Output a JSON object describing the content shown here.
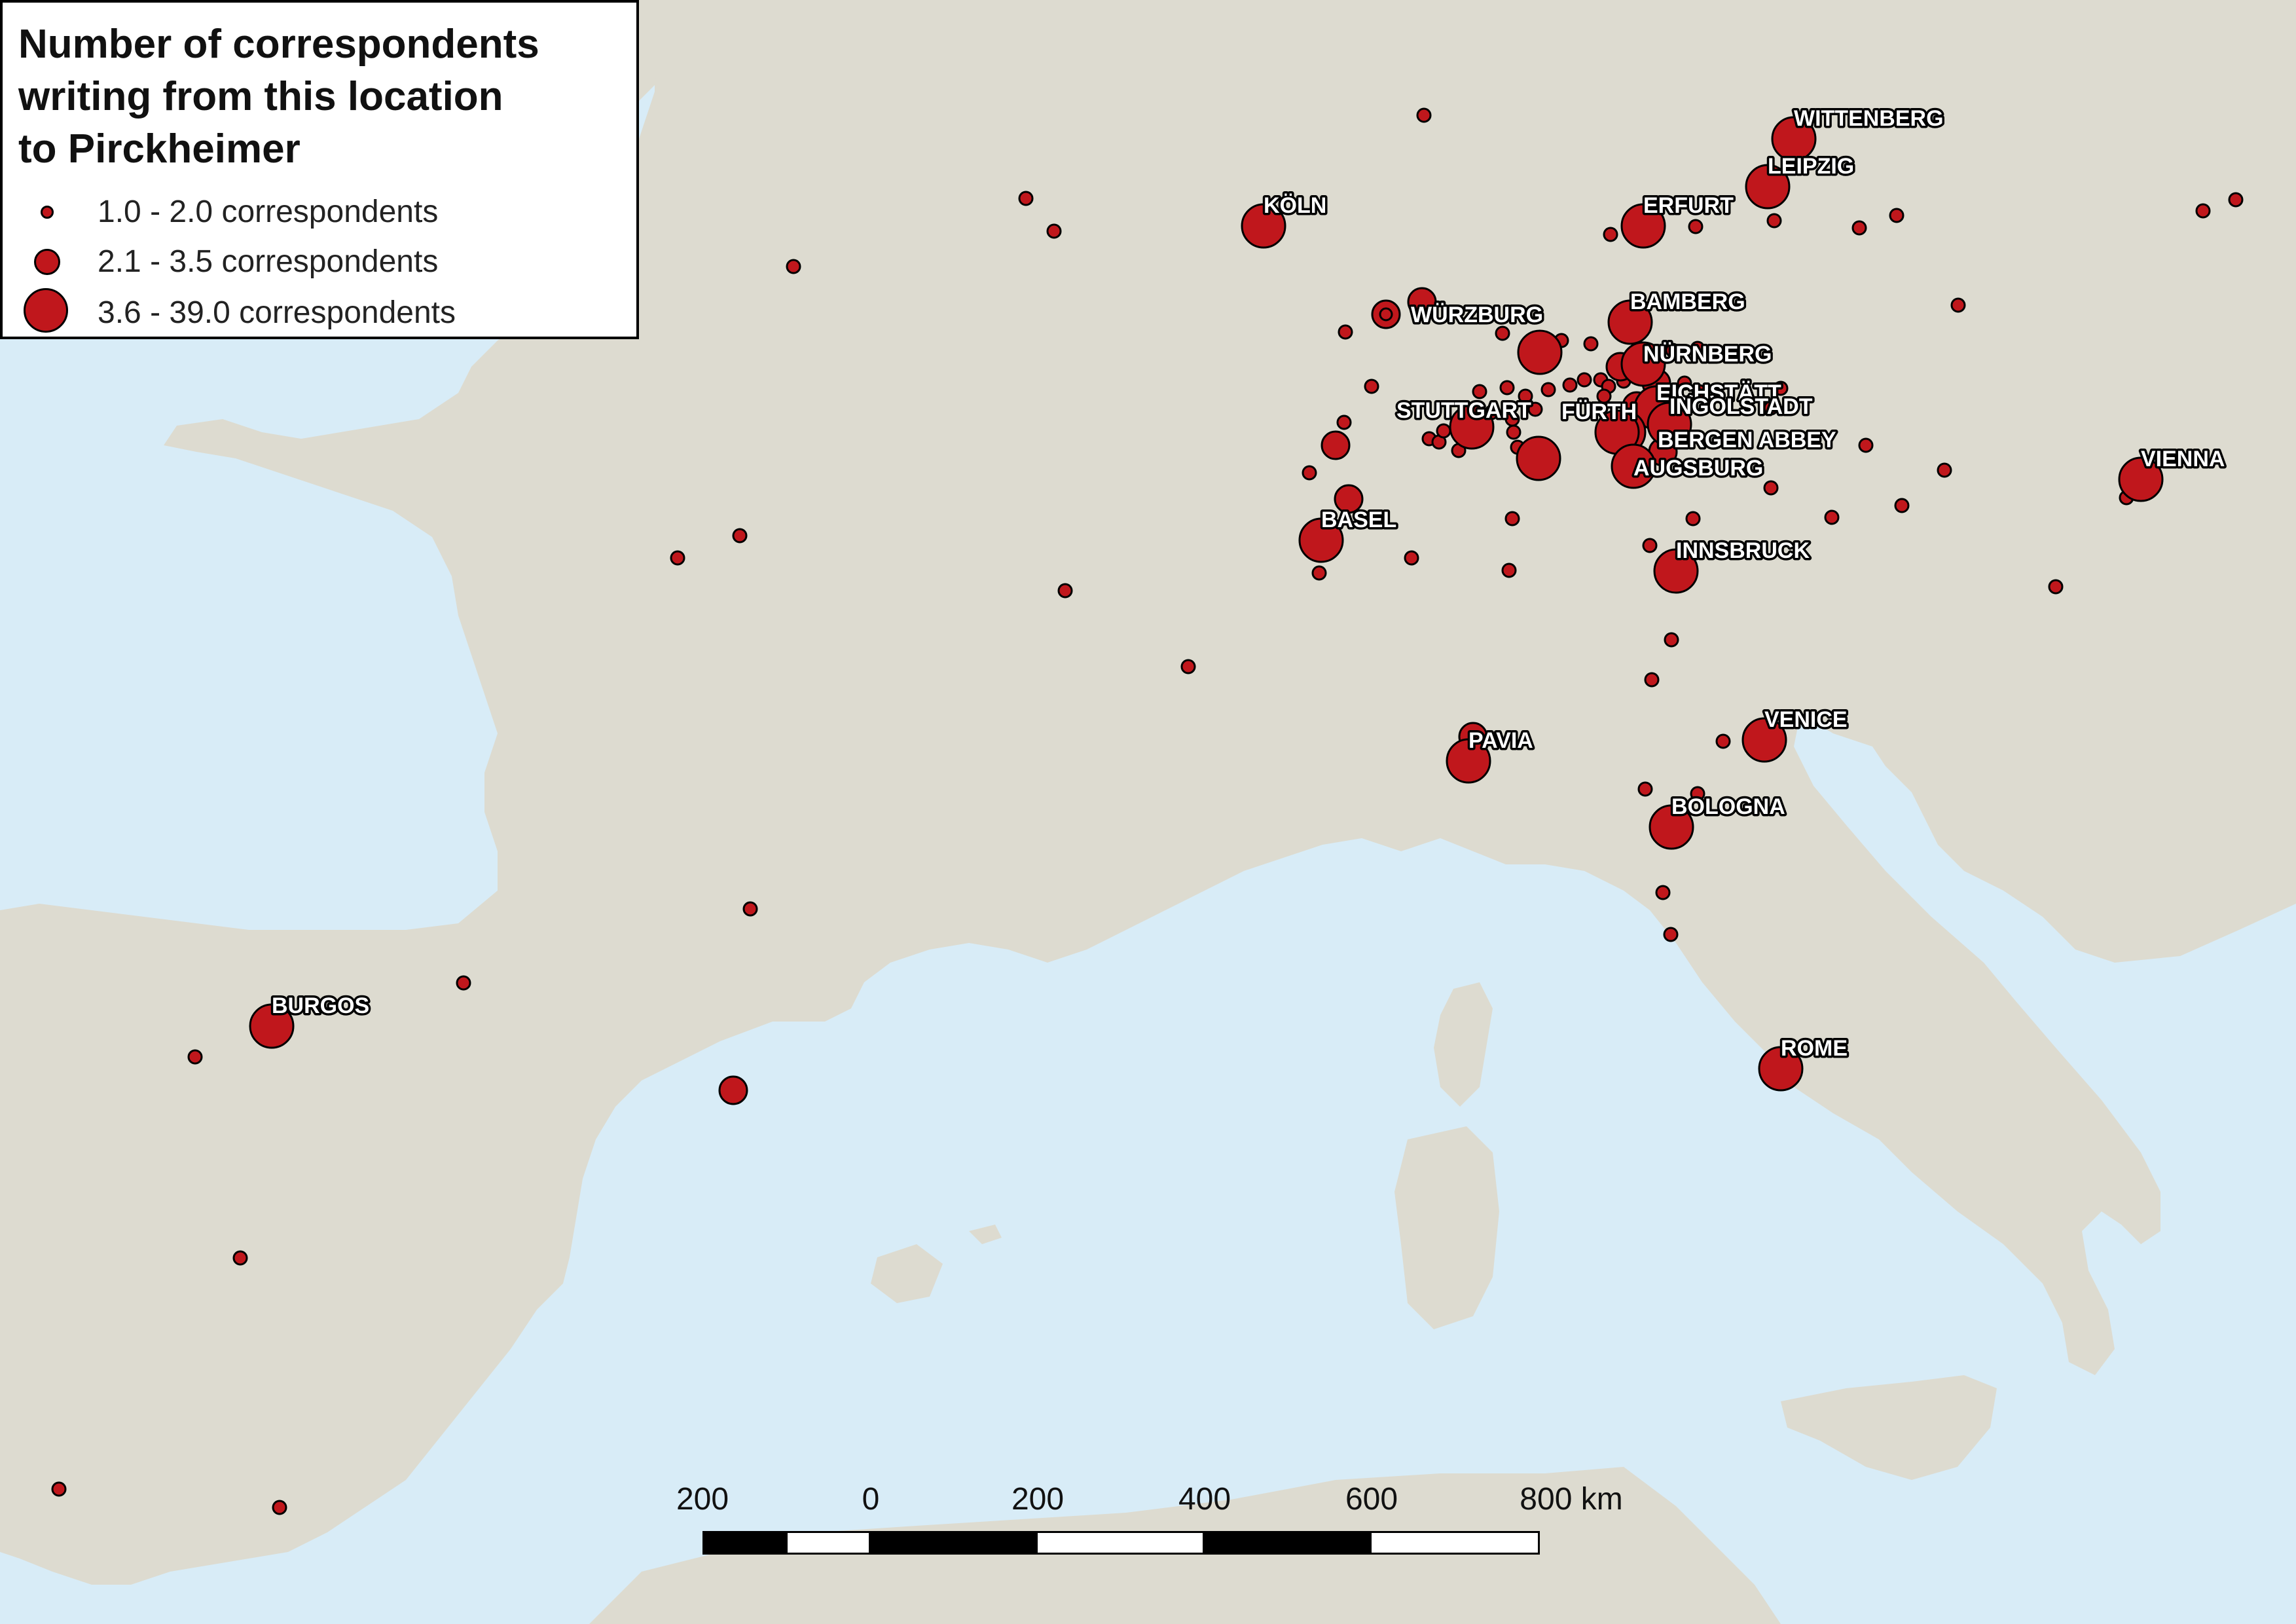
{
  "legend": {
    "title_lines": [
      "Number of correspondents",
      "writing from this location",
      "to Pirckheimer"
    ],
    "classes": [
      {
        "label": "1.0 - 2.0 correspondents",
        "size": "small"
      },
      {
        "label": "2.1 - 3.5 correspondents",
        "size": "medium"
      },
      {
        "label": "3.6 - 39.0 correspondents",
        "size": "large"
      }
    ]
  },
  "scale_bar": {
    "labels": [
      "200",
      "0",
      "200",
      "400",
      "600",
      "800 km"
    ]
  },
  "colors": {
    "sea": "#d8ecf7",
    "land": "#dddbd0",
    "marker": "#c0171c",
    "marker_outline": "#000000"
  },
  "cities": [
    {
      "name": "WITTENBERG",
      "size": "large"
    },
    {
      "name": "LEIPZIG",
      "size": "large"
    },
    {
      "name": "ERFURT",
      "size": "large"
    },
    {
      "name": "KÖLN",
      "size": "large"
    },
    {
      "name": "BAMBERG",
      "size": "large"
    },
    {
      "name": "WÜRZBURG",
      "size": "medium"
    },
    {
      "name": "NÜRNBERG",
      "size": "large"
    },
    {
      "name": "EICHSTÄTT",
      "size": "large"
    },
    {
      "name": "INGOLSTADT",
      "size": "large"
    },
    {
      "name": "STUTTGART",
      "size": "large"
    },
    {
      "name": "FÜRTH",
      "size": "large"
    },
    {
      "name": "BERGEN ABBEY",
      "size": "large"
    },
    {
      "name": "AUGSBURG",
      "size": "large"
    },
    {
      "name": "VIENNA",
      "size": "large"
    },
    {
      "name": "BASEL",
      "size": "large"
    },
    {
      "name": "INNSBRUCK",
      "size": "large"
    },
    {
      "name": "VENICE",
      "size": "large"
    },
    {
      "name": "PAVIA",
      "size": "large"
    },
    {
      "name": "BOLOGNA",
      "size": "large"
    },
    {
      "name": "ROME",
      "size": "large"
    },
    {
      "name": "BURGOS",
      "size": "large"
    }
  ]
}
